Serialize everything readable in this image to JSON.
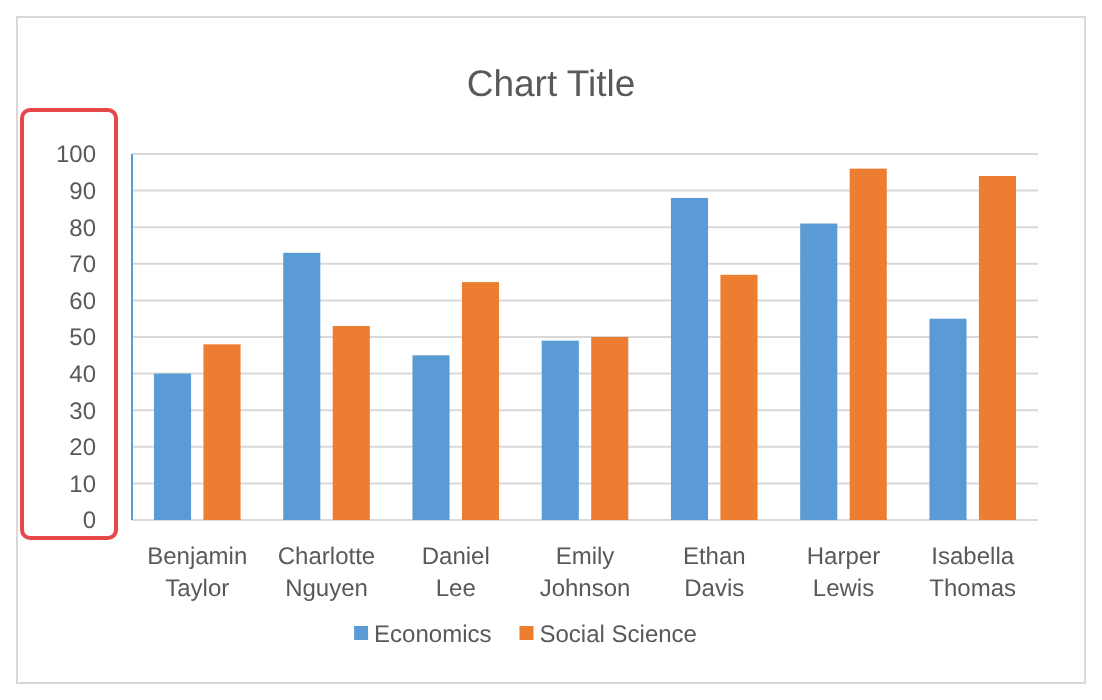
{
  "chart_data": {
    "type": "bar",
    "title": "Chart Title",
    "categories": [
      "Benjamin Taylor",
      "Charlotte Nguyen",
      "Daniel Lee",
      "Emily Johnson",
      "Ethan Davis",
      "Harper Lewis",
      "Isabella Thomas"
    ],
    "series": [
      {
        "name": "Economics",
        "color": "#5b9bd5",
        "values": [
          40,
          73,
          45,
          49,
          88,
          81,
          55
        ]
      },
      {
        "name": "Social Science",
        "color": "#ed7d31",
        "values": [
          48,
          53,
          65,
          50,
          67,
          96,
          94
        ]
      }
    ],
    "ylim": [
      0,
      100
    ],
    "yticks": [
      0,
      10,
      20,
      30,
      40,
      50,
      60,
      70,
      80,
      90,
      100
    ],
    "grid": "y",
    "legend": "bottom"
  }
}
